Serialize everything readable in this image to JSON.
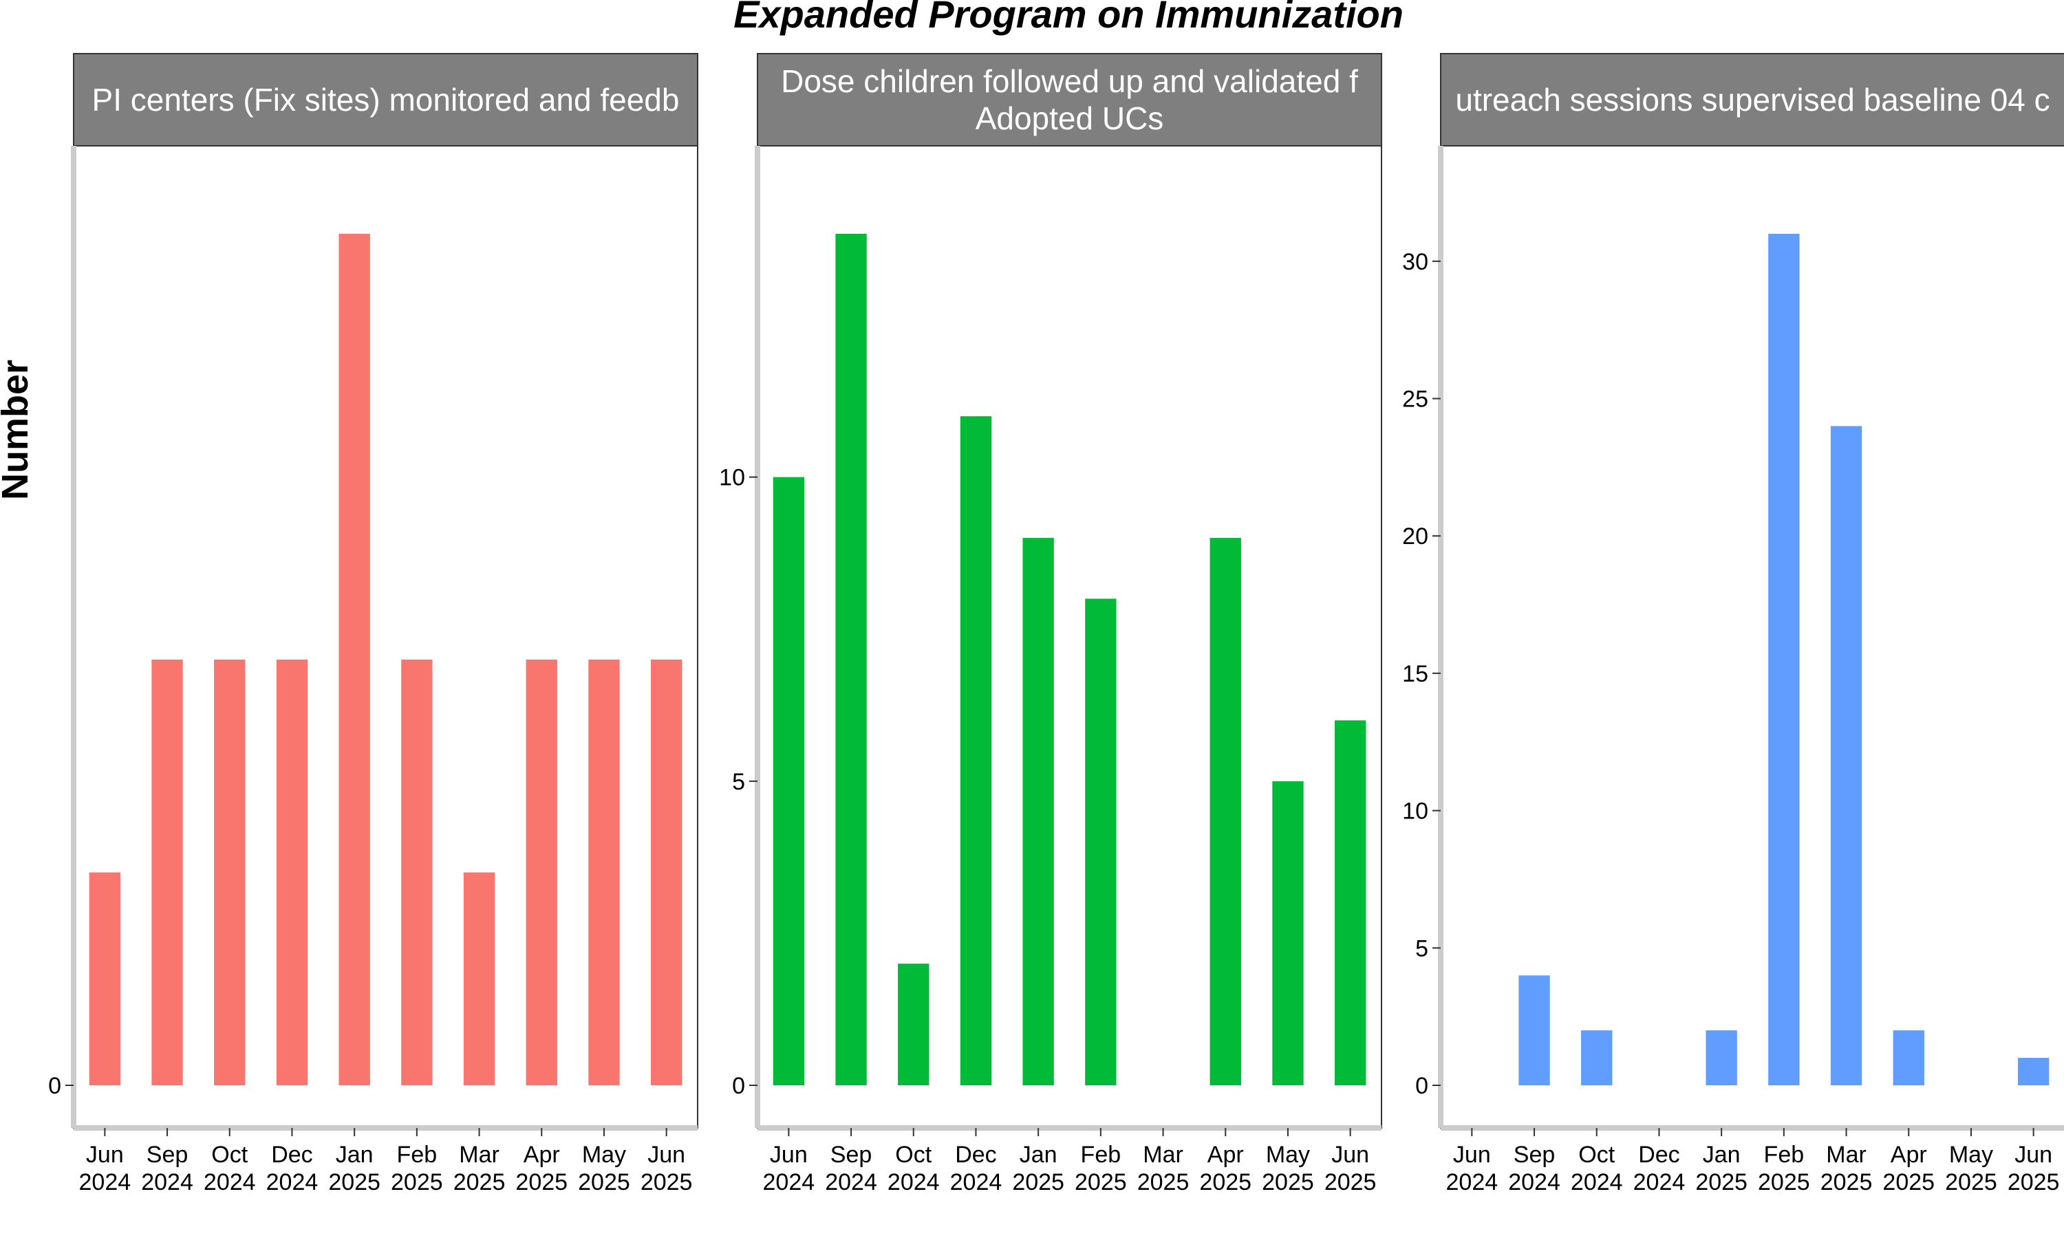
{
  "chart_data": {
    "title": "Expanded Program on Immunization",
    "ylabel": "Number",
    "panels": [
      {
        "type": "bar",
        "strip_lines": [
          "PI centers (Fix sites) monitored and feedb"
        ],
        "color": "#F8766D",
        "categories": [
          [
            "Jun",
            "2024"
          ],
          [
            "Sep",
            "2024"
          ],
          [
            "Oct",
            "2024"
          ],
          [
            "Dec",
            "2024"
          ],
          [
            "Jan",
            "2025"
          ],
          [
            "Feb",
            "2025"
          ],
          [
            "Mar",
            "2025"
          ],
          [
            "Apr",
            "2025"
          ],
          [
            "May",
            "2025"
          ],
          [
            "Jun",
            "2025"
          ]
        ],
        "values": [
          1,
          2,
          2,
          2,
          4,
          2,
          1,
          2,
          2,
          2
        ],
        "ylim": [
          0,
          4.2
        ],
        "yticks": [
          0
        ],
        "ytick_labels": [
          "0"
        ]
      },
      {
        "type": "bar",
        "strip_lines": [
          "Dose children followed up and validated f",
          "Adopted UCs"
        ],
        "color": "#00BA38",
        "categories": [
          [
            "Jun",
            "2024"
          ],
          [
            "Sep",
            "2024"
          ],
          [
            "Oct",
            "2024"
          ],
          [
            "Dec",
            "2024"
          ],
          [
            "Jan",
            "2025"
          ],
          [
            "Feb",
            "2025"
          ],
          [
            "Mar",
            "2025"
          ],
          [
            "Apr",
            "2025"
          ],
          [
            "May",
            "2025"
          ],
          [
            "Jun",
            "2025"
          ]
        ],
        "values": [
          10,
          14,
          2,
          11,
          9,
          8,
          0,
          9,
          5,
          6
        ],
        "ylim": [
          0,
          14.7
        ],
        "yticks": [
          0,
          5,
          10
        ],
        "ytick_labels": [
          "0",
          "5",
          "10"
        ]
      },
      {
        "type": "bar",
        "strip_lines": [
          "utreach sessions supervised baseline 04 c"
        ],
        "color": "#619CFF",
        "categories": [
          [
            "Jun",
            "2024"
          ],
          [
            "Sep",
            "2024"
          ],
          [
            "Oct",
            "2024"
          ],
          [
            "Dec",
            "2024"
          ],
          [
            "Jan",
            "2025"
          ],
          [
            "Feb",
            "2025"
          ],
          [
            "Mar",
            "2025"
          ],
          [
            "Apr",
            "2025"
          ],
          [
            "May",
            "2025"
          ],
          [
            "Jun",
            "2025"
          ]
        ],
        "values": [
          0,
          4,
          2,
          0,
          2,
          31,
          24,
          2,
          0,
          1
        ],
        "ylim": [
          0,
          32.55
        ],
        "yticks": [
          0,
          5,
          10,
          15,
          20,
          25,
          30
        ],
        "ytick_labels": [
          "0",
          "5",
          "10",
          "15",
          "20",
          "25",
          "30"
        ]
      }
    ]
  }
}
